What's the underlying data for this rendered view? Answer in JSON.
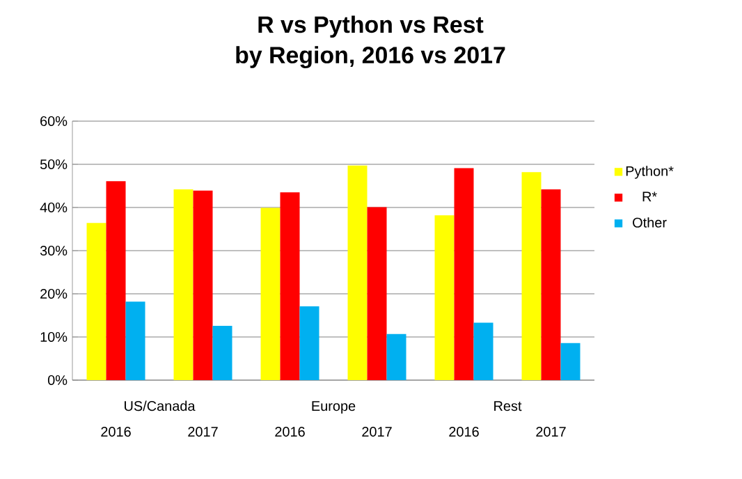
{
  "chart_data": {
    "type": "bar",
    "title": "R vs Python vs Rest\nby Region, 2016 vs 2017",
    "categories": [
      "2016",
      "2017",
      "2016",
      "2017",
      "2016",
      "2017"
    ],
    "annotations": [
      "US/Canada",
      "Europe",
      "Rest"
    ],
    "series": [
      {
        "name": "Python*",
        "color": "#ffff00",
        "values": [
          36.4,
          44.2,
          39.9,
          49.7,
          38.2,
          48.2
        ]
      },
      {
        "name": "R*",
        "color": "#ff0000",
        "values": [
          46.1,
          43.9,
          43.5,
          40.1,
          49.1,
          44.2
        ]
      },
      {
        "name": "Other",
        "color": "#00b0f0",
        "values": [
          18.2,
          12.6,
          17.1,
          10.7,
          13.3,
          8.6
        ]
      }
    ],
    "ylim": [
      0,
      60
    ],
    "yticks": [
      {
        "value": 0,
        "label": "0%"
      },
      {
        "value": 10,
        "label": "10%"
      },
      {
        "value": 20,
        "label": "20%"
      },
      {
        "value": 30,
        "label": "30%"
      },
      {
        "value": 40,
        "label": "40%"
      },
      {
        "value": 50,
        "label": "50%"
      },
      {
        "value": 60,
        "label": "60%"
      }
    ],
    "grid": "y",
    "legend": "right"
  }
}
